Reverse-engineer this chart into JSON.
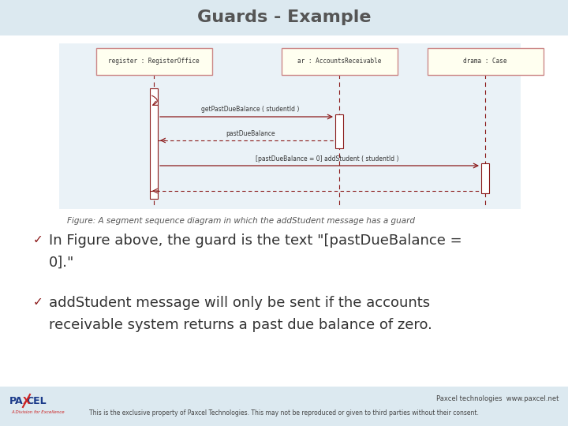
{
  "title": "Guards - Example",
  "title_fontsize": 16,
  "title_color": "#555555",
  "bg_color": "#dce9f0",
  "header_bg": "#dce9f0",
  "lifeline_color": "#8b1a1a",
  "box_edge_color": "#cc8888",
  "box_fill": "#fffff0",
  "arrow_color": "#8b1a1a",
  "figure_caption": "Figure: A segment sequence diagram in which the addStudent message has a guard",
  "caption_fontsize": 7.5,
  "bullet1_line1": "In Figure above, the guard is the text \"[pastDueBalance =",
  "bullet1_line2": "0].\"",
  "bullet2_line1": "addStudent message will only be sent if the accounts",
  "bullet2_line2": "receivable system returns a past due balance of zero.",
  "bullet_fontsize": 13,
  "footer_text1": "Paxcel technologies  www.paxcel.net",
  "footer_text2": "This is the exclusive property of Paxcel Technologies. This may not be reproduced or given to third parties without their consent.",
  "footer_fontsize": 6,
  "objects": [
    "register : RegisterOffice",
    "ar : AccountsReceivable",
    "drama : Case"
  ],
  "msg1": "getPastDueBalance ( studentId )",
  "msg2": "pastDueBalance",
  "msg3": "[pastDueBalance = 0] addStudent ( studentId )"
}
